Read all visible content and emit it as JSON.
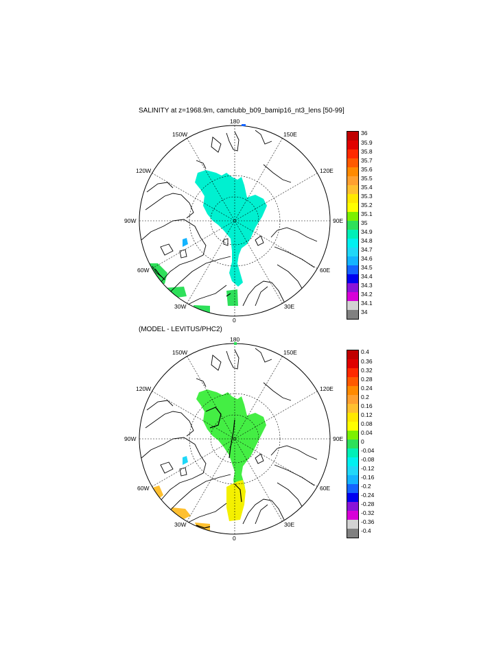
{
  "panels": [
    {
      "title": "SALINITY at z=1968.9m, camclubb_b09_bamip16_nt3_lens [50-99]",
      "lon_labels": [
        "180",
        "150E",
        "120E",
        "90E",
        "60E",
        "30E",
        "0",
        "30W",
        "60W",
        "90W",
        "120W",
        "150W"
      ],
      "colorbar": {
        "labels": [
          "36",
          "35.9",
          "35.8",
          "35.7",
          "35.6",
          "35.5",
          "35.4",
          "35.3",
          "35.2",
          "35.1",
          "35",
          "34.9",
          "34.8",
          "34.7",
          "34.6",
          "34.5",
          "34.4",
          "34.3",
          "34.2",
          "34.1",
          "34"
        ],
        "colors": [
          "#c00000",
          "#e00000",
          "#ff2a00",
          "#ff5a00",
          "#ff8a00",
          "#ffa030",
          "#ffc030",
          "#ffe800",
          "#ffff00",
          "#7cf000",
          "#2ee05a",
          "#00f0b8",
          "#00f0f0",
          "#20d8f8",
          "#14b4ff",
          "#1464ff",
          "#0000f0",
          "#8a14d8",
          "#d800d8",
          "#d2d2d2",
          "#808080"
        ]
      }
    },
    {
      "title": "(MODEL - LEVITUS/PHC2)",
      "lon_labels": [
        "180",
        "150E",
        "120E",
        "90E",
        "60E",
        "30E",
        "0",
        "30W",
        "60W",
        "90W",
        "120W",
        "150W"
      ],
      "colorbar": {
        "labels": [
          "0.4",
          "0.36",
          "0.32",
          "0.28",
          "0.24",
          "0.2",
          "0.16",
          "0.12",
          "0.08",
          "0.04",
          "0",
          "-0.04",
          "-0.08",
          "-0.12",
          "-0.16",
          "-0.2",
          "-0.24",
          "-0.28",
          "-0.32",
          "-0.36",
          "-0.4"
        ],
        "colors": [
          "#c00000",
          "#e00000",
          "#ff2a00",
          "#ff5a00",
          "#ff8a00",
          "#ffa030",
          "#ffc030",
          "#ffe800",
          "#ffff00",
          "#7cf000",
          "#2ee05a",
          "#00f0b8",
          "#00f0f0",
          "#20d8f8",
          "#14b4ff",
          "#1464ff",
          "#0000f0",
          "#8a14d8",
          "#d800d8",
          "#d2d2d2",
          "#808080"
        ]
      }
    }
  ],
  "colors": {
    "panel1_field": "#00f0d0",
    "panel1_warm": "#2ee05a",
    "panel1_low": "#14b4ff",
    "panel2_field": "#44ee44",
    "panel2_yellow": "#f4f000",
    "panel2_orange": "#ffc030"
  }
}
